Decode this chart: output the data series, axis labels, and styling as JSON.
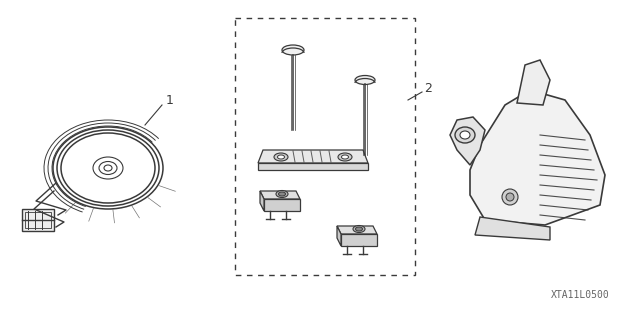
{
  "bg_color": "#ffffff",
  "line_color": "#3a3a3a",
  "part_label_1": "1",
  "part_label_2": "2",
  "watermark": "XTA11L0500",
  "fig_width": 6.4,
  "fig_height": 3.19,
  "dpi": 100
}
